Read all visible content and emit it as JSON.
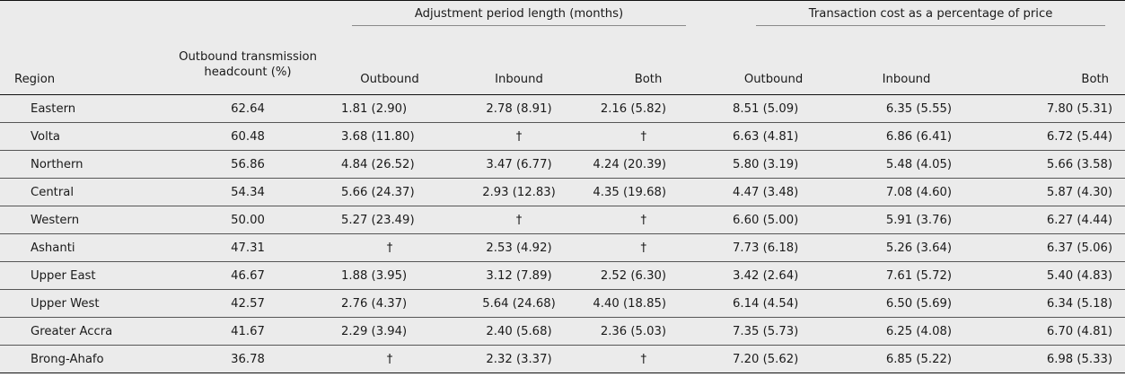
{
  "table": {
    "group_headers": {
      "adjustment": "Adjustment period length (months)",
      "transaction": "Transaction cost as a percentage of price"
    },
    "columns": {
      "region": "Region",
      "headcount": "Outbound transmission headcount (%)",
      "adj_outbound": "Outbound",
      "adj_inbound": "Inbound",
      "adj_both": "Both",
      "tc_outbound": "Outbound",
      "tc_inbound": "Inbound",
      "tc_both": "Both"
    },
    "rows": [
      {
        "region": "Eastern",
        "headcount": "62.64",
        "adj_outbound": "1.81 (2.90)",
        "adj_inbound": "2.78 (8.91)",
        "adj_both": "2.16 (5.82)",
        "tc_outbound": "8.51 (5.09)",
        "tc_inbound": "6.35 (5.55)",
        "tc_both": "7.80 (5.31)"
      },
      {
        "region": "Volta",
        "headcount": "60.48",
        "adj_outbound": "3.68 (11.80)",
        "adj_inbound": "†",
        "adj_both": "†",
        "tc_outbound": "6.63 (4.81)",
        "tc_inbound": "6.86 (6.41)",
        "tc_both": "6.72 (5.44)"
      },
      {
        "region": "Northern",
        "headcount": "56.86",
        "adj_outbound": "4.84 (26.52)",
        "adj_inbound": "3.47 (6.77)",
        "adj_both": "4.24 (20.39)",
        "tc_outbound": "5.80 (3.19)",
        "tc_inbound": "5.48 (4.05)",
        "tc_both": "5.66 (3.58)"
      },
      {
        "region": "Central",
        "headcount": "54.34",
        "adj_outbound": "5.66 (24.37)",
        "adj_inbound": "2.93 (12.83)",
        "adj_both": "4.35 (19.68)",
        "tc_outbound": "4.47 (3.48)",
        "tc_inbound": "7.08 (4.60)",
        "tc_both": "5.87 (4.30)"
      },
      {
        "region": "Western",
        "headcount": "50.00",
        "adj_outbound": "5.27 (23.49)",
        "adj_inbound": "†",
        "adj_both": "†",
        "tc_outbound": "6.60 (5.00)",
        "tc_inbound": "5.91 (3.76)",
        "tc_both": "6.27 (4.44)"
      },
      {
        "region": "Ashanti",
        "headcount": "47.31",
        "adj_outbound": "†",
        "adj_inbound": "2.53 (4.92)",
        "adj_both": "†",
        "tc_outbound": "7.73 (6.18)",
        "tc_inbound": "5.26 (3.64)",
        "tc_both": "6.37 (5.06)"
      },
      {
        "region": "Upper East",
        "headcount": "46.67",
        "adj_outbound": "1.88 (3.95)",
        "adj_inbound": "3.12 (7.89)",
        "adj_both": "2.52 (6.30)",
        "tc_outbound": "3.42 (2.64)",
        "tc_inbound": "7.61 (5.72)",
        "tc_both": "5.40 (4.83)"
      },
      {
        "region": "Upper West",
        "headcount": "42.57",
        "adj_outbound": "2.76 (4.37)",
        "adj_inbound": "5.64 (24.68)",
        "adj_both": "4.40 (18.85)",
        "tc_outbound": "6.14 (4.54)",
        "tc_inbound": "6.50 (5.69)",
        "tc_both": "6.34 (5.18)"
      },
      {
        "region": "Greater Accra",
        "headcount": "41.67",
        "adj_outbound": "2.29 (3.94)",
        "adj_inbound": "2.40 (5.68)",
        "adj_both": "2.36 (5.03)",
        "tc_outbound": "7.35 (5.73)",
        "tc_inbound": "6.25 (4.08)",
        "tc_both": "6.70 (4.81)"
      },
      {
        "region": "Brong-Ahafo",
        "headcount": "36.78",
        "adj_outbound": "†",
        "adj_inbound": "2.32 (3.37)",
        "adj_both": "†",
        "tc_outbound": "7.20 (5.62)",
        "tc_inbound": "6.85 (5.22)",
        "tc_both": "6.98 (5.33)"
      }
    ]
  }
}
